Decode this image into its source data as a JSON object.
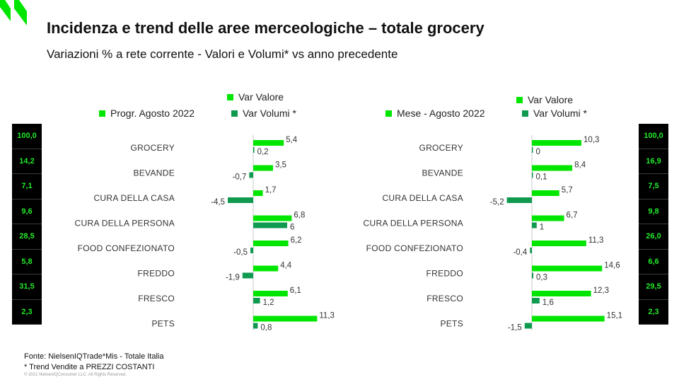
{
  "header": {
    "title": "Incidenza e trend delle aree merceologiche – totale grocery",
    "subtitle": "Variazioni % a rete corrente - Valori e Volumi* vs anno precedente"
  },
  "colors": {
    "valore": "#00e600",
    "volumi": "#109a50",
    "axis": "#c8c8c8",
    "side_bg": "#000000",
    "side_text": "#22e82a"
  },
  "chart_data": [
    {
      "type": "bar",
      "orientation": "horizontal",
      "period_label": "Progr. Agosto 2022",
      "categories": [
        "GROCERY",
        "BEVANDE",
        "CURA DELLA CASA",
        "CURA DELLA PERSONA",
        "FOOD CONFEZIONATO",
        "FREDDO",
        "FRESCO",
        "PETS"
      ],
      "share_values": [
        "100,0",
        "14,2",
        "7,1",
        "9,6",
        "28,5",
        "5,8",
        "31,5",
        "2,3"
      ],
      "series": [
        {
          "name": "Var Valore",
          "values": [
            5.4,
            3.5,
            1.7,
            6.8,
            6.2,
            4.4,
            6.1,
            11.3
          ],
          "labels": [
            "5,4",
            "3,5",
            "1,7",
            "6,8",
            "6,2",
            "4,4",
            "6,1",
            "11,3"
          ]
        },
        {
          "name": "Var Volumi *",
          "values": [
            0.2,
            -0.7,
            -4.5,
            6.0,
            -0.5,
            -1.9,
            1.2,
            0.8
          ],
          "labels": [
            "0,2",
            "-0,7",
            "-4,5",
            "6",
            "-0,5",
            "-1,9",
            "1,2",
            "0,8"
          ]
        }
      ]
    },
    {
      "type": "bar",
      "orientation": "horizontal",
      "period_label": "Mese - Agosto 2022",
      "categories": [
        "GROCERY",
        "BEVANDE",
        "CURA DELLA CASA",
        "CURA DELLA PERSONA",
        "FOOD CONFEZIONATO",
        "FREDDO",
        "FRESCO",
        "PETS"
      ],
      "share_values": [
        "100,0",
        "16,9",
        "7,5",
        "9,8",
        "26,0",
        "6,6",
        "29,5",
        "2,3"
      ],
      "series": [
        {
          "name": "Var Valore",
          "values": [
            10.3,
            8.4,
            5.7,
            6.7,
            11.3,
            14.6,
            12.3,
            15.1
          ],
          "labels": [
            "10,3",
            "8,4",
            "5,7",
            "6,7",
            "11,3",
            "14,6",
            "12,3",
            "15,1"
          ]
        },
        {
          "name": "Var Volumi *",
          "values": [
            0.0,
            0.1,
            -5.2,
            1.0,
            -0.4,
            0.3,
            1.6,
            -1.5
          ],
          "labels": [
            "0",
            "0,1",
            "-5,2",
            "1",
            "-0,4",
            "0,3",
            "1,6",
            "-1,5"
          ]
        }
      ]
    }
  ],
  "footer": {
    "source": "Fonte: NielsenIQTrade*Mis  - Totale Italia",
    "note": "* Trend Vendite a PREZZI COSTANTI",
    "copyright": "© 2021 NielsenIQConsumer LLC. All Rights Reserved."
  }
}
